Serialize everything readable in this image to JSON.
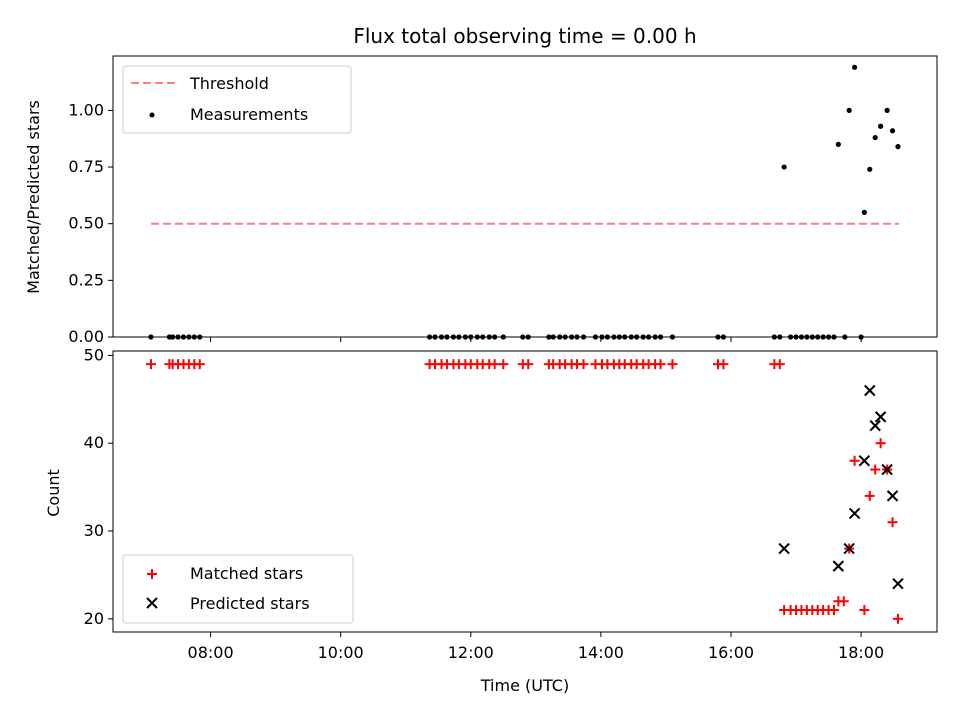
{
  "chart_data": [
    {
      "type": "scatter",
      "title": "Flux total observing time = 0.00 h",
      "ylabel": "Matched/Predicted stars",
      "xlabel": "",
      "ylim": [
        0,
        1.24
      ],
      "xlim": [
        "06:30",
        "19:10"
      ],
      "yticks": [
        "0.00",
        "0.25",
        "0.50",
        "0.75",
        "1.00"
      ],
      "legend": {
        "placement": "top-left",
        "entries": [
          "Threshold",
          "Measurements"
        ]
      },
      "threshold": {
        "name": "Threshold",
        "value": 0.5,
        "x": [
          "07:05",
          "18:35"
        ],
        "color": "#ff7f7f"
      },
      "series": [
        {
          "name": "Measurements",
          "color": "#000000",
          "points": [
            [
              "07:05",
              0
            ],
            [
              "07:22",
              0
            ],
            [
              "07:25",
              0
            ],
            [
              "07:30",
              0
            ],
            [
              "07:35",
              0
            ],
            [
              "07:40",
              0
            ],
            [
              "07:45",
              0
            ],
            [
              "07:50",
              0
            ],
            [
              "11:22",
              0
            ],
            [
              "11:27",
              0
            ],
            [
              "11:33",
              0
            ],
            [
              "11:38",
              0
            ],
            [
              "11:44",
              0
            ],
            [
              "11:49",
              0
            ],
            [
              "11:55",
              0
            ],
            [
              "12:00",
              0
            ],
            [
              "12:06",
              0
            ],
            [
              "12:11",
              0
            ],
            [
              "12:17",
              0
            ],
            [
              "12:22",
              0
            ],
            [
              "12:30",
              0
            ],
            [
              "12:48",
              0
            ],
            [
              "12:53",
              0
            ],
            [
              "13:12",
              0
            ],
            [
              "13:16",
              0
            ],
            [
              "13:22",
              0
            ],
            [
              "13:27",
              0
            ],
            [
              "13:33",
              0
            ],
            [
              "13:38",
              0
            ],
            [
              "13:44",
              0
            ],
            [
              "13:55",
              0
            ],
            [
              "14:01",
              0
            ],
            [
              "14:06",
              0
            ],
            [
              "14:12",
              0
            ],
            [
              "14:17",
              0
            ],
            [
              "14:22",
              0
            ],
            [
              "14:28",
              0
            ],
            [
              "14:33",
              0
            ],
            [
              "14:39",
              0
            ],
            [
              "14:44",
              0
            ],
            [
              "14:50",
              0
            ],
            [
              "14:55",
              0
            ],
            [
              "15:06",
              0
            ],
            [
              "15:48",
              0
            ],
            [
              "15:53",
              0
            ],
            [
              "16:40",
              0
            ],
            [
              "16:45",
              0
            ],
            [
              "16:55",
              0
            ],
            [
              "17:00",
              0
            ],
            [
              "17:05",
              0
            ],
            [
              "17:10",
              0
            ],
            [
              "17:15",
              0
            ],
            [
              "17:20",
              0
            ],
            [
              "17:25",
              0
            ],
            [
              "17:30",
              0
            ],
            [
              "17:35",
              0
            ],
            [
              "17:45",
              0
            ],
            [
              "18:00",
              0
            ],
            [
              "16:49",
              0.75
            ],
            [
              "17:39",
              0.85
            ],
            [
              "17:49",
              1.0
            ],
            [
              "17:54",
              1.19
            ],
            [
              "18:03",
              0.55
            ],
            [
              "18:08",
              0.74
            ],
            [
              "18:13",
              0.88
            ],
            [
              "18:18",
              0.93
            ],
            [
              "18:24",
              1.0
            ],
            [
              "18:29",
              0.91
            ],
            [
              "18:34",
              0.84
            ]
          ]
        }
      ]
    },
    {
      "type": "scatter",
      "title": "",
      "xlabel": "Time (UTC)",
      "ylabel": "Count",
      "ylim": [
        18.5,
        50.5
      ],
      "xlim": [
        "06:30",
        "19:10"
      ],
      "xticks": [
        "08:00",
        "10:00",
        "12:00",
        "14:00",
        "16:00",
        "18:00"
      ],
      "yticks": [
        "20",
        "30",
        "40",
        "50"
      ],
      "legend": {
        "placement": "bottom-left",
        "entries": [
          "Matched stars",
          "Predicted stars"
        ]
      },
      "series": [
        {
          "name": "Matched stars",
          "marker": "plus",
          "color": "#ff0000",
          "points": [
            [
              "07:05",
              49
            ],
            [
              "07:22",
              49
            ],
            [
              "07:25",
              49
            ],
            [
              "07:30",
              49
            ],
            [
              "07:35",
              49
            ],
            [
              "07:40",
              49
            ],
            [
              "07:45",
              49
            ],
            [
              "07:50",
              49
            ],
            [
              "11:22",
              49
            ],
            [
              "11:27",
              49
            ],
            [
              "11:33",
              49
            ],
            [
              "11:38",
              49
            ],
            [
              "11:44",
              49
            ],
            [
              "11:49",
              49
            ],
            [
              "11:55",
              49
            ],
            [
              "12:00",
              49
            ],
            [
              "12:06",
              49
            ],
            [
              "12:11",
              49
            ],
            [
              "12:17",
              49
            ],
            [
              "12:22",
              49
            ],
            [
              "12:30",
              49
            ],
            [
              "12:48",
              49
            ],
            [
              "12:53",
              49
            ],
            [
              "13:12",
              49
            ],
            [
              "13:16",
              49
            ],
            [
              "13:22",
              49
            ],
            [
              "13:27",
              49
            ],
            [
              "13:33",
              49
            ],
            [
              "13:38",
              49
            ],
            [
              "13:44",
              49
            ],
            [
              "13:55",
              49
            ],
            [
              "14:01",
              49
            ],
            [
              "14:06",
              49
            ],
            [
              "14:12",
              49
            ],
            [
              "14:17",
              49
            ],
            [
              "14:22",
              49
            ],
            [
              "14:28",
              49
            ],
            [
              "14:33",
              49
            ],
            [
              "14:39",
              49
            ],
            [
              "14:44",
              49
            ],
            [
              "14:50",
              49
            ],
            [
              "14:55",
              49
            ],
            [
              "15:06",
              49
            ],
            [
              "15:48",
              49
            ],
            [
              "15:53",
              49
            ],
            [
              "16:40",
              49
            ],
            [
              "16:45",
              49
            ],
            [
              "16:49",
              21
            ],
            [
              "16:55",
              21
            ],
            [
              "17:00",
              21
            ],
            [
              "17:05",
              21
            ],
            [
              "17:10",
              21
            ],
            [
              "17:15",
              21
            ],
            [
              "17:20",
              21
            ],
            [
              "17:25",
              21
            ],
            [
              "17:30",
              21
            ],
            [
              "17:35",
              21
            ],
            [
              "17:39",
              22
            ],
            [
              "17:44",
              22
            ],
            [
              "17:49",
              28
            ],
            [
              "17:54",
              38
            ],
            [
              "18:03",
              21
            ],
            [
              "18:08",
              34
            ],
            [
              "18:13",
              37
            ],
            [
              "18:18",
              40
            ],
            [
              "18:24",
              37
            ],
            [
              "18:29",
              31
            ],
            [
              "18:34",
              20
            ]
          ]
        },
        {
          "name": "Predicted stars",
          "marker": "x",
          "color": "#000000",
          "points": [
            [
              "16:49",
              28
            ],
            [
              "17:39",
              26
            ],
            [
              "17:49",
              28
            ],
            [
              "17:54",
              32
            ],
            [
              "18:03",
              38
            ],
            [
              "18:08",
              46
            ],
            [
              "18:13",
              42
            ],
            [
              "18:18",
              43
            ],
            [
              "18:24",
              37
            ],
            [
              "18:29",
              34
            ],
            [
              "18:34",
              24
            ]
          ]
        }
      ]
    }
  ]
}
